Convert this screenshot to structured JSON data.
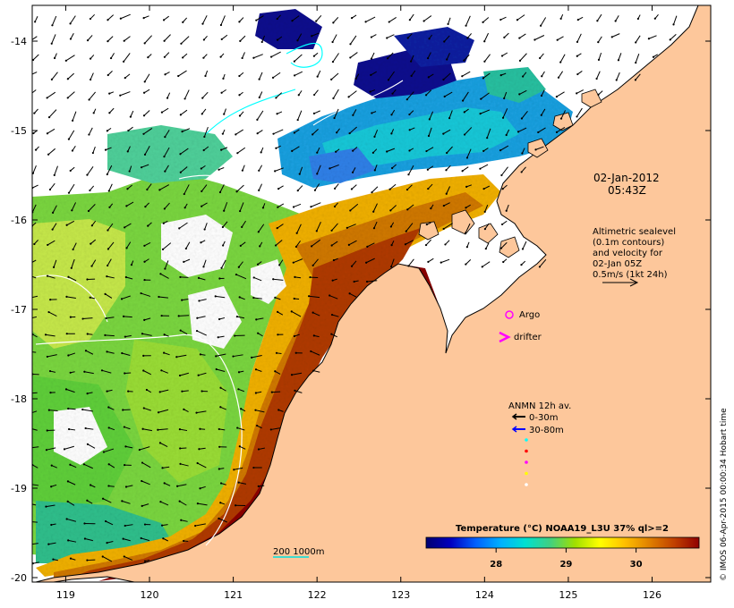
{
  "map": {
    "lon_ticks": [
      "119",
      "120",
      "121",
      "122",
      "123",
      "124",
      "125",
      "126"
    ],
    "lat_ticks": [
      "-14",
      "-15",
      "-16",
      "-17",
      "-18",
      "-19",
      "-20"
    ],
    "lon_range": [
      118.6,
      126.7
    ],
    "lat_range": [
      -20.05,
      -13.6
    ],
    "colors": {
      "land": "#fdc79b",
      "nodata": "#ffffff",
      "coast": "#000000",
      "contour": "#ffffff",
      "contour_deep": "#00ffff"
    }
  },
  "timestamp": {
    "date": "02-Jan-2012",
    "time": "05:43Z"
  },
  "altimetry_note": {
    "lines": [
      "Altimetric sealevel",
      "(0.1m contours)",
      "and velocity for",
      "02-Jan 05Z",
      "0.5m/s (1kt 24h)"
    ]
  },
  "legend": {
    "argo_label": "Argo",
    "argo_color": "#ff00ff",
    "drifter_label": "drifter",
    "drifter_color": "#ff00ff",
    "anmn_title": "ANMN 12h av.",
    "anmn_items": [
      {
        "label": "0-30m",
        "color": "#000000"
      },
      {
        "label": "30-80m",
        "color": "#0000ff"
      }
    ],
    "dot_colors": [
      "#00ffff",
      "#ff0000",
      "#ff00ff",
      "#ffff00",
      "#ffffff"
    ]
  },
  "isobath": {
    "label": "200  1000m",
    "color": "#00e0e0"
  },
  "colorbar": {
    "title": "Temperature (°C) NOAA19_L3U 37% ql>=2",
    "ticks": [
      "28",
      "29",
      "30"
    ],
    "stops": [
      "#000070",
      "#0000c0",
      "#0060ff",
      "#00b0ff",
      "#00e0d0",
      "#40d080",
      "#a0e000",
      "#ffff00",
      "#ffc000",
      "#e08000",
      "#c04000",
      "#900000"
    ]
  },
  "credit": "© IMOS 06-Apr-2015 00:00:34 Hobart time"
}
